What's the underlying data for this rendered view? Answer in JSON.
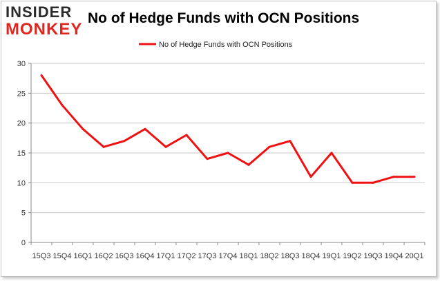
{
  "brand": {
    "line1": "INSIDER",
    "line2": "MONKEY"
  },
  "chart_data": {
    "type": "line",
    "title": "No of Hedge Funds with OCN Positions",
    "xlabel": "",
    "ylabel": "",
    "x": [
      "15Q3",
      "15Q4",
      "16Q1",
      "16Q2",
      "16Q3",
      "16Q4",
      "17Q1",
      "17Q2",
      "17Q3",
      "17Q4",
      "18Q1",
      "18Q2",
      "18Q3",
      "18Q4",
      "19Q1",
      "19Q2",
      "19Q3",
      "19Q4",
      "20Q1"
    ],
    "series": [
      {
        "name": "No of Hedge Funds with OCN Positions",
        "values": [
          28,
          23,
          19,
          16,
          17,
          19,
          16,
          18,
          14,
          15,
          13,
          16,
          17,
          11,
          15,
          10,
          10,
          11,
          11
        ],
        "color": "#ee1111"
      }
    ],
    "ylim": [
      0,
      30
    ],
    "yticks": [
      0,
      5,
      10,
      15,
      20,
      25,
      30
    ],
    "grid": true,
    "legend": "top-center"
  }
}
